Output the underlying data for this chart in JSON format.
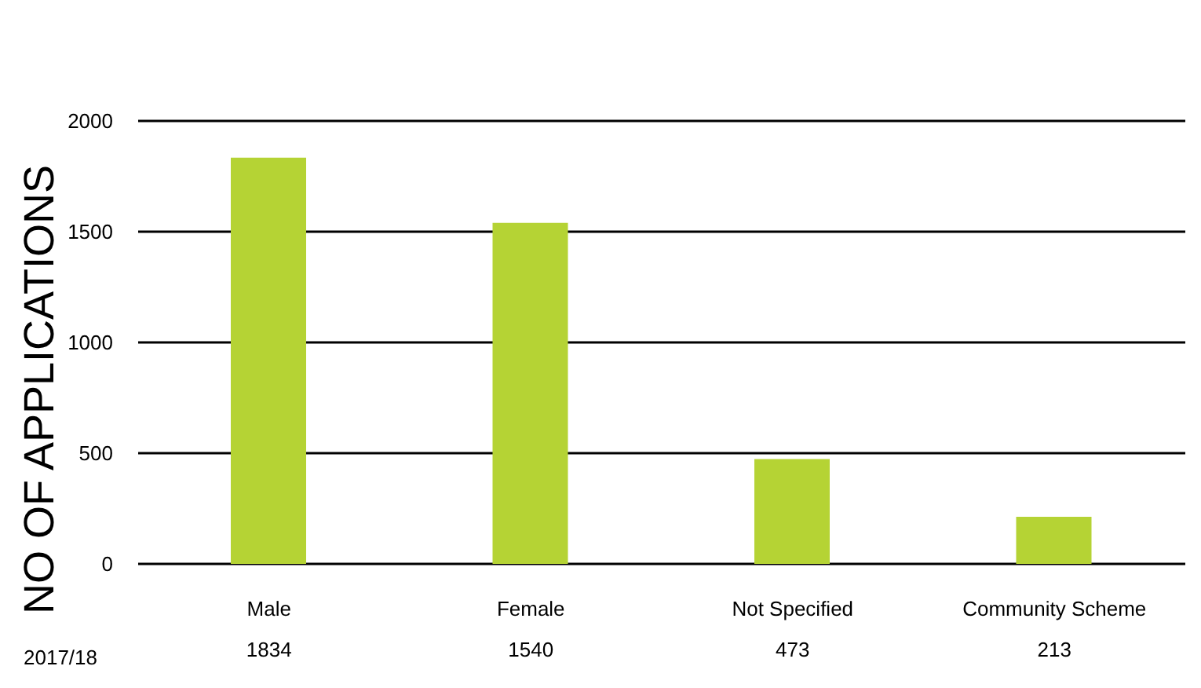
{
  "chart_data": {
    "type": "bar",
    "ylabel": "NO OF APPLICATIONS",
    "categories": [
      "Male",
      "Female",
      "Not Specified",
      "Community Scheme"
    ],
    "series": [
      {
        "name": "2017/18",
        "color": "#b5d334",
        "values": [
          1834,
          1540,
          473,
          213
        ]
      }
    ],
    "ylim": [
      0,
      2000
    ],
    "yticks": [
      0,
      500,
      1000,
      1500,
      2000
    ],
    "grid": "y",
    "legend": false,
    "data_labels": true
  }
}
